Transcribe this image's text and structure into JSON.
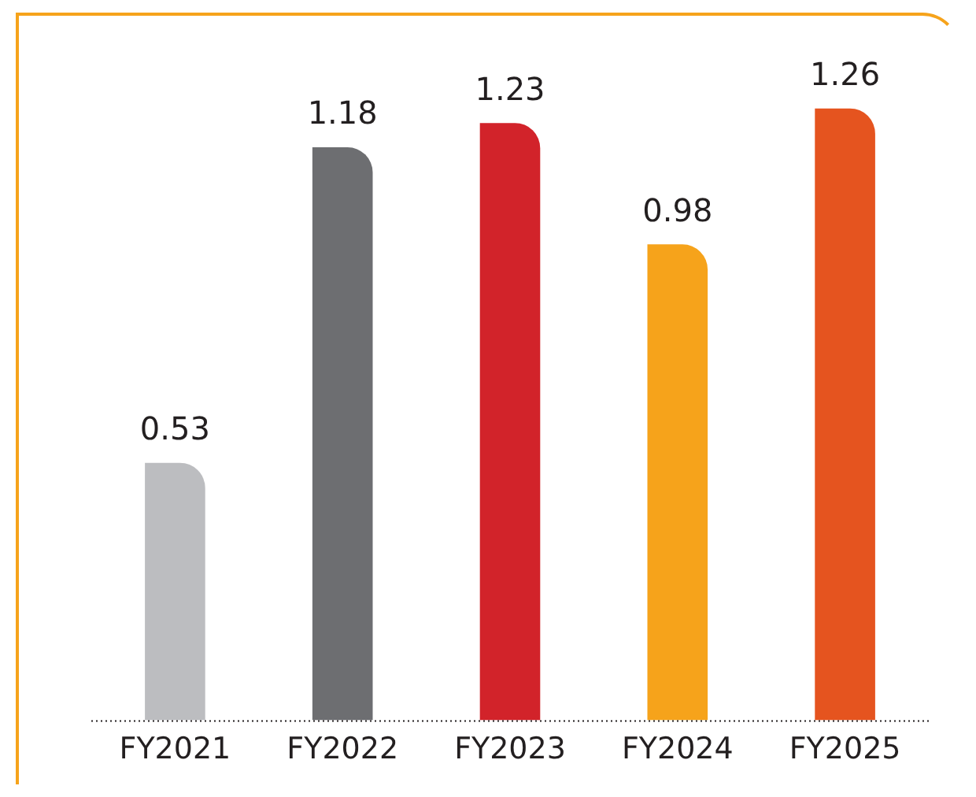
{
  "chart_data": {
    "type": "bar",
    "relative": false,
    "categories": [
      "FY2021",
      "FY2022",
      "FY2023",
      "FY2024",
      "FY2025"
    ],
    "values": [
      0.53,
      1.18,
      1.23,
      0.98,
      1.26
    ],
    "colors": [
      "#bcbdc0",
      "#6d6e71",
      "#d2232a",
      "#f6a31b",
      "#e5541f"
    ],
    "data_labels": true,
    "grid": false,
    "legend": false
  }
}
